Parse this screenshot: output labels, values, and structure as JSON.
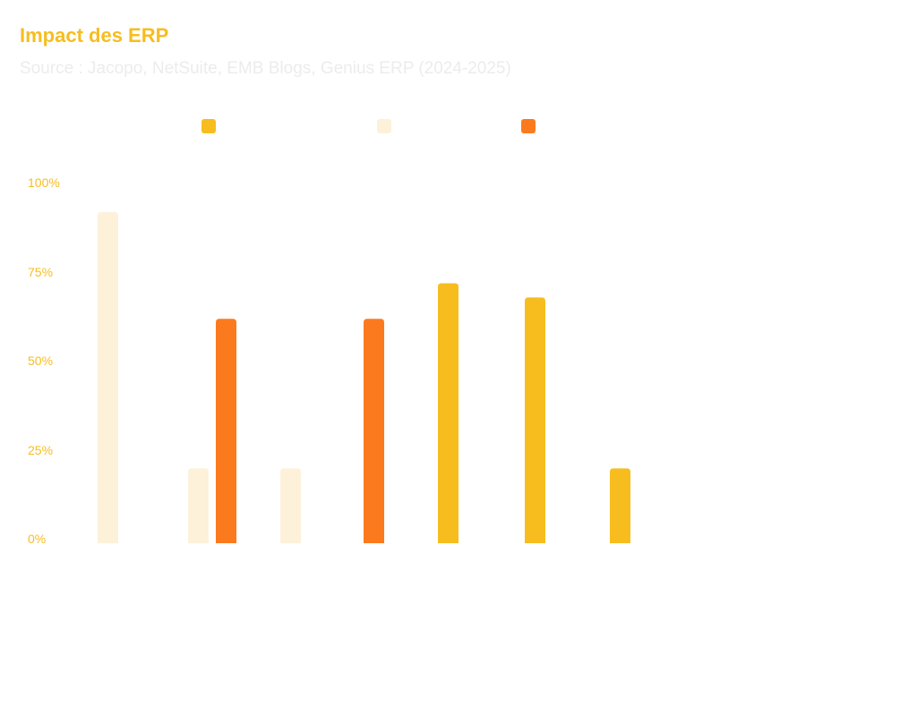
{
  "chart_data": {
    "type": "bar",
    "title": "Impact des ERP",
    "subtitle": "Source : Jacopo, NetSuite, EMB Blogs, Genius ERP  (2024-2025)",
    "xlabel": "",
    "ylabel": "",
    "ylim": [
      0,
      100
    ],
    "yticks": [
      "0%",
      "25%",
      "50%",
      "75%",
      "100%"
    ],
    "yticks_values": [
      0,
      25,
      50,
      75,
      100
    ],
    "grid": false,
    "legend_position": "top-center",
    "categories": [
      "",
      "",
      "",
      "",
      "",
      "",
      ""
    ],
    "series": [
      {
        "name": "",
        "color": "#f7bd1f",
        "values": [
          null,
          null,
          null,
          null,
          73,
          69,
          21
        ]
      },
      {
        "name": "",
        "color": "#fdf1da",
        "values": [
          93,
          21,
          21,
          null,
          null,
          null,
          null
        ]
      },
      {
        "name": "",
        "color": "#fc7a1e",
        "values": [
          null,
          63,
          null,
          63,
          null,
          null,
          null
        ]
      }
    ]
  }
}
